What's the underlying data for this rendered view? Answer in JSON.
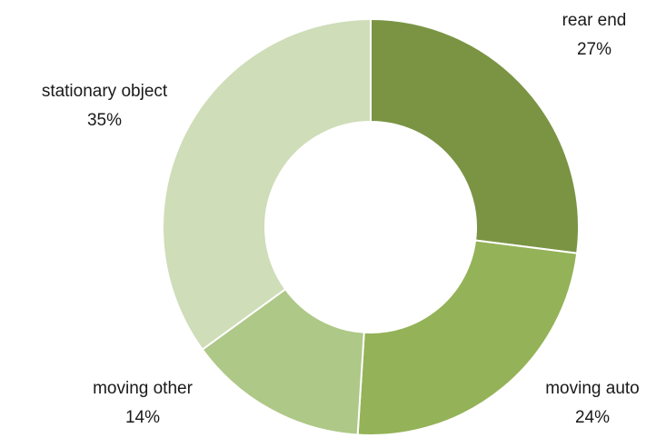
{
  "chart_data": {
    "type": "pie",
    "variant": "donut",
    "title": "",
    "slices": [
      {
        "name": "rear end",
        "value": 27,
        "label": "27%",
        "color": "#7a9444"
      },
      {
        "name": "moving auto",
        "value": 24,
        "label": "24%",
        "color": "#94b257"
      },
      {
        "name": "moving other",
        "value": 14,
        "label": "14%",
        "color": "#aec887"
      },
      {
        "name": "stationary object",
        "value": 35,
        "label": "35%",
        "color": "#cfddb8"
      }
    ],
    "legend": "none",
    "data_labels": "outside, category name with percentage"
  }
}
